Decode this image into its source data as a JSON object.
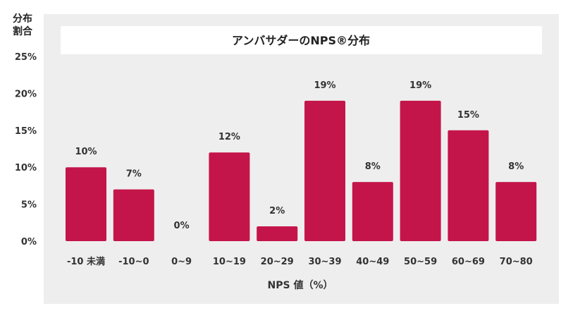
{
  "y_axis_title_line1": "分布",
  "y_axis_title_line2": "割合",
  "colors": {
    "bar": "#C4154A",
    "panel": "#EEEEEE",
    "title_box": "#FFFFFF",
    "text": "#333333"
  },
  "chart_data": {
    "type": "bar",
    "title": "アンバサダーのNPS®分布",
    "xlabel": "NPS 値（%）",
    "ylabel": "分布割合",
    "categories": [
      "-10 未満",
      "-10~0",
      "0~9",
      "10~19",
      "20~29",
      "30~39",
      "40~49",
      "50~59",
      "60~69",
      "70~80"
    ],
    "values": [
      10,
      7,
      0,
      12,
      2,
      19,
      8,
      19,
      15,
      8
    ],
    "value_labels": [
      "10%",
      "7%",
      "0%",
      "12%",
      "2%",
      "19%",
      "8%",
      "19%",
      "15%",
      "8%"
    ],
    "y_ticks": [
      0,
      5,
      10,
      15,
      20,
      25
    ],
    "y_tick_labels": [
      "0%",
      "5%",
      "10%",
      "15%",
      "20%",
      "25%"
    ],
    "ylim": [
      0,
      25
    ],
    "grid": false,
    "legend": "none"
  }
}
